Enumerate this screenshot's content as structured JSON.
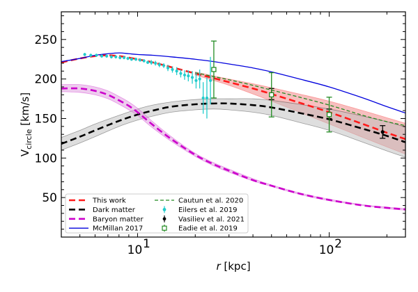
{
  "chart_data": {
    "type": "line",
    "xlabel_var": "r",
    "xlabel_unit": "[kpc]",
    "ylabel_main": "V",
    "ylabel_sub": "circle",
    "ylabel_unit": "[km/s]",
    "x_scale": "log",
    "xlim": [
      4,
      250
    ],
    "ylim": [
      0,
      285
    ],
    "xticks": [
      {
        "value": 10,
        "base": "10",
        "exp": "1"
      },
      {
        "value": 100,
        "base": "10",
        "exp": "2"
      }
    ],
    "yticks": [
      {
        "value": 50,
        "label": "50"
      },
      {
        "value": 100,
        "label": "100"
      },
      {
        "value": 150,
        "label": "150"
      },
      {
        "value": 200,
        "label": "200"
      },
      {
        "value": 250,
        "label": "250"
      }
    ],
    "series": [
      {
        "name": "This work",
        "style": "dashed",
        "color": "#ff1a1a",
        "band_color": "#f08080",
        "x": [
          4,
          5,
          6,
          7,
          8,
          9,
          10,
          12,
          15,
          20,
          25,
          30,
          40,
          50,
          70,
          100,
          150,
          200,
          250
        ],
        "values": [
          221,
          226,
          229,
          230,
          229,
          227,
          225,
          221,
          215,
          207,
          201,
          196,
          188,
          181,
          170,
          158,
          143,
          132,
          124
        ],
        "band": {
          "x": [
            20,
            25,
            30,
            40,
            50,
            70,
            100,
            150,
            200,
            250
          ],
          "lower": [
            205,
            198,
            192,
            181,
            172,
            158,
            143,
            126,
            114,
            105
          ],
          "upper": [
            209,
            204,
            200,
            194,
            189,
            181,
            172,
            160,
            151,
            144
          ]
        }
      },
      {
        "name": "Dark matter",
        "style": "dashed",
        "color": "#000000",
        "band_color": "#bdbdbd",
        "x": [
          4,
          5,
          6,
          8,
          10,
          12,
          15,
          20,
          25,
          30,
          40,
          50,
          70,
          100,
          150,
          200,
          250
        ],
        "values": [
          118,
          127,
          135,
          147,
          155,
          160,
          165,
          168,
          169,
          169,
          167,
          164,
          157,
          149,
          137,
          128,
          120
        ],
        "band": {
          "x": [
            4,
            5,
            6,
            8,
            10,
            12,
            15,
            20,
            25,
            30,
            40,
            50,
            70,
            100,
            150,
            200,
            250
          ],
          "lower": [
            110,
            119,
            127,
            140,
            148,
            153,
            158,
            161,
            162,
            161,
            158,
            154,
            145,
            135,
            120,
            109,
            101
          ],
          "upper": [
            126,
            135,
            143,
            154,
            162,
            167,
            171,
            174,
            175,
            175,
            175,
            173,
            168,
            162,
            153,
            146,
            139
          ]
        }
      },
      {
        "name": "Baryon matter",
        "style": "dashed",
        "color": "#cc00cc",
        "band_color": "#dd99dd",
        "x": [
          4,
          5,
          6,
          7,
          8,
          9,
          10,
          12,
          15,
          20,
          25,
          30,
          40,
          50,
          70,
          100,
          150,
          200,
          250
        ],
        "values": [
          188,
          188,
          185,
          180,
          173,
          166,
          158,
          142,
          124,
          104,
          92,
          84,
          72,
          65,
          55,
          47,
          40,
          37,
          35
        ],
        "band": {
          "x": [
            4,
            5,
            6,
            7,
            8,
            9,
            10,
            12,
            15,
            20,
            25,
            30,
            40,
            50,
            70,
            100,
            150,
            200,
            250
          ],
          "lower": [
            184,
            183,
            180,
            175,
            168,
            161,
            154,
            138,
            121,
            102,
            90,
            82,
            71,
            64,
            54,
            46,
            40,
            36,
            34
          ],
          "upper": [
            193,
            193,
            190,
            185,
            178,
            171,
            163,
            146,
            127,
            106,
            94,
            86,
            74,
            66,
            56,
            48,
            41,
            38,
            36
          ]
        }
      },
      {
        "name": "McMillan 2017",
        "style": "solid",
        "color": "#0000dd",
        "x": [
          4,
          5,
          6,
          7,
          8,
          9,
          10,
          12,
          15,
          20,
          25,
          30,
          40,
          50,
          70,
          100,
          150,
          200,
          250
        ],
        "values": [
          222,
          226,
          230,
          232,
          233,
          232,
          231,
          230,
          228,
          225,
          222,
          219,
          214,
          209,
          200,
          190,
          176,
          165,
          157
        ]
      },
      {
        "name": "Cautun et al. 2020",
        "style": "dashed-thin",
        "color": "#228b22",
        "x": [
          20,
          25,
          30,
          40,
          50,
          70,
          100,
          150,
          200,
          250
        ],
        "values": [
          208,
          203,
          199,
          192,
          186,
          177,
          167,
          154,
          146,
          141
        ]
      }
    ],
    "observations": [
      {
        "name": "Eilers et al. 2019",
        "marker": "circle",
        "color": "#22cccc",
        "x": [
          5.3,
          5.7,
          6.1,
          6.5,
          6.9,
          7.3,
          7.7,
          8.1,
          8.5,
          8.9,
          9.3,
          9.8,
          10.3,
          10.8,
          11.3,
          11.8,
          12.4,
          13.0,
          13.7,
          14.4,
          15.2,
          16.0,
          16.8,
          17.6,
          18.4,
          19.3,
          20.2,
          21.1,
          22.0,
          23.0,
          24.0
        ],
        "values": [
          231,
          230,
          230,
          229,
          229,
          228,
          228,
          227,
          227,
          226,
          225,
          225,
          224,
          223,
          221,
          221,
          220,
          218,
          217,
          214,
          212,
          210,
          207,
          205,
          204,
          202,
          198,
          200,
          176,
          176,
          198
        ],
        "err": [
          2,
          2,
          2,
          2,
          2,
          2,
          2,
          2,
          2,
          2,
          2,
          2,
          2,
          2,
          2,
          3,
          3,
          3,
          3,
          4,
          4,
          5,
          5,
          6,
          7,
          8,
          10,
          12,
          20,
          26,
          30
        ]
      },
      {
        "name": "Vasiliev et al. 2021",
        "marker": "circle",
        "color": "#000000",
        "x": [
          50,
          100,
          190
        ],
        "values": [
          181,
          156,
          133
        ],
        "err": [
          7,
          6,
          8
        ]
      },
      {
        "name": "Eadie et al. 2019",
        "marker": "square",
        "color": "#228b22",
        "x": [
          25,
          50,
          100
        ],
        "values": [
          212,
          180,
          155
        ],
        "err": [
          36,
          28,
          22
        ]
      }
    ]
  }
}
